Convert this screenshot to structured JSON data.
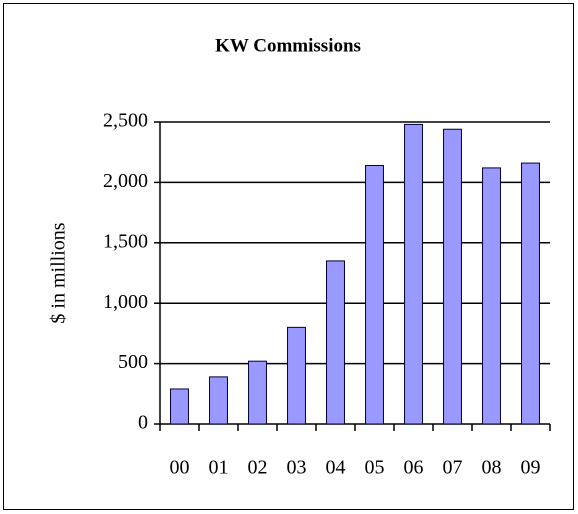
{
  "chart_data": {
    "type": "bar",
    "title": "KW Commissions",
    "y_label": "$ in millions",
    "categories": [
      "00",
      "01",
      "02",
      "03",
      "04",
      "05",
      "06",
      "07",
      "08",
      "09"
    ],
    "values": [
      290,
      390,
      520,
      800,
      1350,
      2140,
      2480,
      2440,
      2120,
      2160
    ],
    "color": "#9999ff",
    "ylim": [
      0,
      2500
    ],
    "yticks": [
      0,
      500,
      {
        "value": 1000,
        "label": "1,000"
      },
      {
        "value": 1500,
        "label": "1,500"
      },
      {
        "value": 2000,
        "label": "2,000"
      },
      {
        "value": 2500,
        "label": "2,500"
      }
    ],
    "grid": true
  }
}
